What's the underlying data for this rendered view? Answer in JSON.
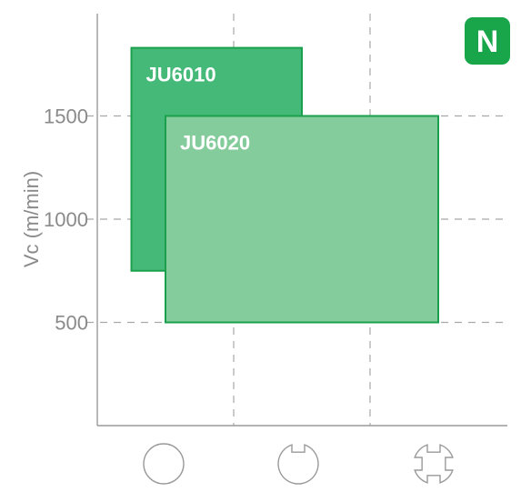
{
  "badge": {
    "label": "N",
    "color": "#19a64a"
  },
  "chart_data": {
    "type": "bar",
    "ylabel": "Vc (m/min)",
    "xlabel": "",
    "ylim": [
      0,
      1500
    ],
    "yticks": [
      500,
      1000,
      1500
    ],
    "y_range_max": 1900,
    "grid": "dashed",
    "categories": [
      "continuous-round",
      "light-interrupted",
      "heavy-interrupted"
    ],
    "category_icons": [
      "circle-icon",
      "notched-circle-icon",
      "cross-interrupted-icon"
    ],
    "series": [
      {
        "name": "JU6010",
        "x_range": [
          0.25,
          1.5
        ],
        "y_range": [
          750,
          1830
        ],
        "fill": "#45b978",
        "stroke": "#1aa04c"
      },
      {
        "name": "JU6020",
        "x_range": [
          0.5,
          2.5
        ],
        "y_range": [
          500,
          1500
        ],
        "fill": "#85cc9c",
        "stroke": "#1aa04c"
      }
    ]
  }
}
